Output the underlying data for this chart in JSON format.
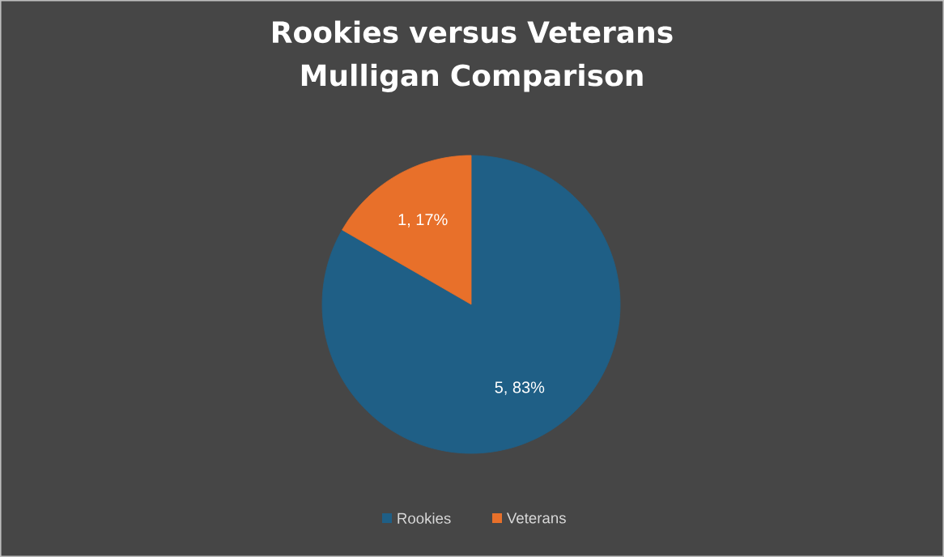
{
  "chart_data": {
    "type": "pie",
    "title": "Rookies versus Veterans Mulligan Comparison",
    "categories": [
      "Rookies",
      "Veterans"
    ],
    "values": [
      5,
      1
    ],
    "colors": [
      "#1f5f86",
      "#e8702a"
    ],
    "value_labels": [
      "5, 83%",
      "1, 17%"
    ],
    "legend": "bottom"
  }
}
